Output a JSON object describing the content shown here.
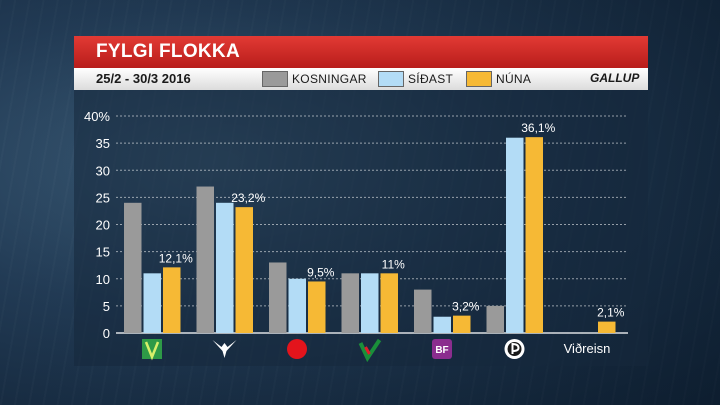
{
  "header": {
    "title": "FYLGI FLOKKA",
    "date_range": "25/2 - 30/3 2016",
    "brand": "GALLUP"
  },
  "colors": {
    "Kosningar": "#9a9a9a",
    "Síðast": "#b3dcf6",
    "Núna": "#f6b935"
  },
  "chart_data": {
    "type": "bar",
    "title": "FYLGI FLOKKA",
    "subtitle": "25/2 - 30/3 2016",
    "ylim": [
      0,
      40
    ],
    "yticks": [
      "0",
      "5",
      "10",
      "15",
      "20",
      "25",
      "30",
      "35",
      "40%"
    ],
    "grid": true,
    "legend_position": "top",
    "categories": [
      "green-v-logo",
      "bird-logo",
      "red-dot-logo",
      "check-logo",
      "BF",
      "pirate-logo",
      "Viðreisn"
    ],
    "category_labels": [
      "",
      "",
      "",
      "",
      "BF",
      "",
      "Viðreisn"
    ],
    "series": [
      {
        "name": "KOSNINGAR",
        "values": [
          24,
          27,
          13,
          11,
          8,
          5,
          null
        ]
      },
      {
        "name": "SÍÐAST",
        "values": [
          11,
          24,
          10,
          11,
          3,
          36,
          null
        ]
      },
      {
        "name": "NÚNA",
        "values": [
          12.1,
          23.2,
          9.5,
          11,
          3.2,
          36.1,
          2.1
        ]
      }
    ],
    "data_labels": [
      "12,1%",
      "23,2%",
      "9,5%",
      "11%",
      "3,2%",
      "36,1%",
      "2,1%"
    ]
  }
}
